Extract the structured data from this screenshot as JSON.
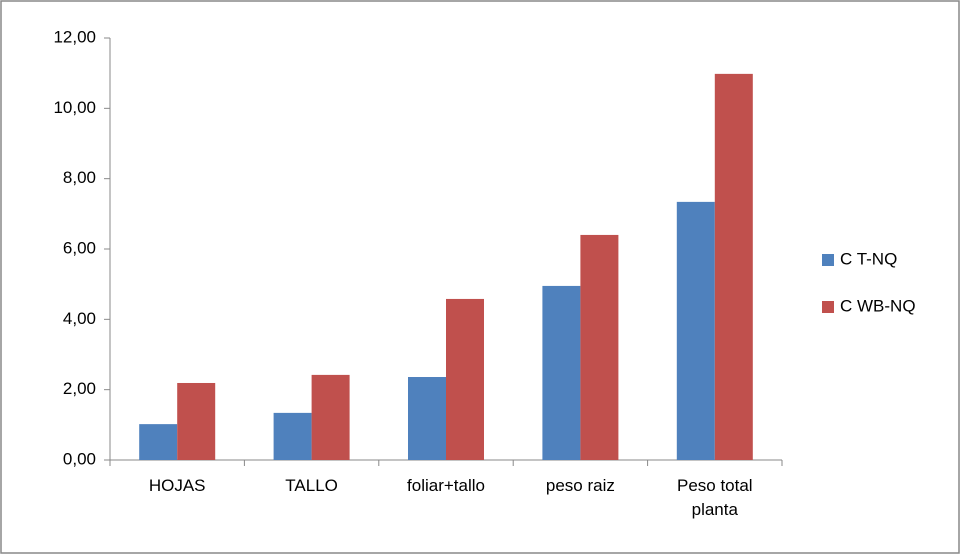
{
  "chart_data": {
    "type": "bar",
    "categories": [
      "HOJAS",
      "TALLO",
      "foliar+tallo",
      "peso raiz",
      "Peso total planta"
    ],
    "series": [
      {
        "name": "C T-NQ",
        "color": "#4f81bd",
        "values": [
          1.02,
          1.34,
          2.36,
          4.95,
          7.34
        ]
      },
      {
        "name": "C WB-NQ",
        "color": "#c0504d",
        "values": [
          2.19,
          2.42,
          4.58,
          6.4,
          10.98
        ]
      }
    ],
    "ylim": [
      0,
      12
    ],
    "yticks": [
      {
        "value": 0,
        "label": "0,00"
      },
      {
        "value": 2,
        "label": "2,00"
      },
      {
        "value": 4,
        "label": "4,00"
      },
      {
        "value": 6,
        "label": "6,00"
      },
      {
        "value": 8,
        "label": "8,00"
      },
      {
        "value": 10,
        "label": "10,00"
      },
      {
        "value": 12,
        "label": "12,00"
      }
    ],
    "grid": false,
    "legend": "right"
  }
}
